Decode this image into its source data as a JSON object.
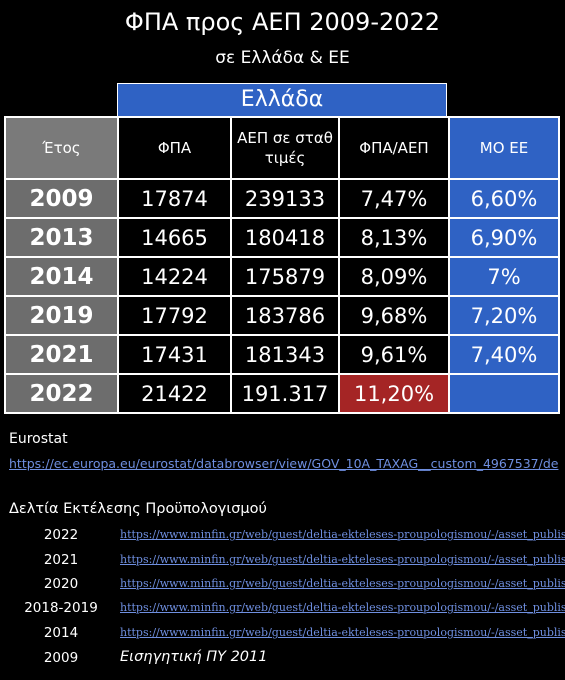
{
  "title": "ΦΠΑ προς ΑΕΠ 2009-2022",
  "subtitle": "σε Ελλάδα & ΕΕ",
  "group_header": "Ελλάδα",
  "table": {
    "headers": [
      "Έτος",
      "ΦΠΑ",
      "ΑΕΠ σε σταθ τιμές",
      "ΦΠΑ/ΑΕΠ",
      "ΜΟ ΕΕ"
    ],
    "rows": [
      {
        "year": "2009",
        "vat": "17874",
        "gdp": "239133",
        "ratio": "7,47%",
        "eu": "6,60%"
      },
      {
        "year": "2013",
        "vat": "14665",
        "gdp": "180418",
        "ratio": "8,13%",
        "eu": "6,90%"
      },
      {
        "year": "2014",
        "vat": "14224",
        "gdp": "175879",
        "ratio": "8,09%",
        "eu": "7%"
      },
      {
        "year": "2019",
        "vat": "17792",
        "gdp": "183786",
        "ratio": "9,68%",
        "eu": "7,20%"
      },
      {
        "year": "2021",
        "vat": "17431",
        "gdp": "181343",
        "ratio": "9,61%",
        "eu": "7,40%"
      },
      {
        "year": "2022",
        "vat": "21422",
        "gdp": "191.317",
        "ratio": "11,20%",
        "eu": ""
      }
    ]
  },
  "sources": {
    "eurostat_label": "Eurostat",
    "eurostat_url": "https://ec.europa.eu/eurostat/databrowser/view/GOV_10A_TAXAG__custom_4967537/de",
    "budget_label": "Δελτία Εκτέλεσης Προϋπολογισμού",
    "budget_links": [
      {
        "year": "2022",
        "url": "https://www.minfin.gr/web/guest/deltia-ekteleses-proupologismou/-/asset_publishe"
      },
      {
        "year": "2021",
        "url": "https://www.minfin.gr/web/guest/deltia-ekteleses-proupologismou/-/asset_publishe"
      },
      {
        "year": "2020",
        "url": "https://www.minfin.gr/web/guest/deltia-ekteleses-proupologismou/-/asset_publishe"
      },
      {
        "year": "2018-2019",
        "url": "https://www.minfin.gr/web/guest/deltia-ekteleses-proupologismou/-/asset_publishe"
      },
      {
        "year": "2014",
        "url": "https://www.minfin.gr/web/guest/deltia-ekteleses-proupologismou/-/asset_publishe"
      },
      {
        "year": "2009",
        "note": "Εισηγητική ΠΥ 2011"
      }
    ]
  },
  "colors": {
    "eu_blue": "#2f62c4",
    "highlight_red": "#a52525",
    "year_gray": "#6d6d6d",
    "link": "#6f8fe0"
  }
}
